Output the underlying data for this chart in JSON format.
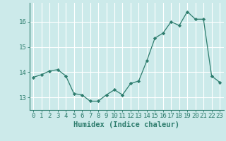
{
  "x": [
    0,
    1,
    2,
    3,
    4,
    5,
    6,
    7,
    8,
    9,
    10,
    11,
    12,
    13,
    14,
    15,
    16,
    17,
    18,
    19,
    20,
    21,
    22,
    23
  ],
  "y": [
    13.8,
    13.9,
    14.05,
    14.1,
    13.85,
    13.15,
    13.1,
    12.85,
    12.85,
    13.1,
    13.3,
    13.1,
    13.55,
    13.65,
    14.45,
    15.35,
    15.55,
    16.0,
    15.85,
    16.4,
    16.1,
    16.1,
    13.85,
    13.6
  ],
  "line_color": "#2e7d6e",
  "marker": "D",
  "marker_size": 2.2,
  "bg_color": "#cceaea",
  "grid_color": "#ffffff",
  "xlabel": "Humidex (Indice chaleur)",
  "xlabel_fontsize": 7.5,
  "tick_label_fontsize": 6.5,
  "yticks": [
    13,
    14,
    15,
    16
  ],
  "xticks": [
    0,
    1,
    2,
    3,
    4,
    5,
    6,
    7,
    8,
    9,
    10,
    11,
    12,
    13,
    14,
    15,
    16,
    17,
    18,
    19,
    20,
    21,
    22,
    23
  ],
  "ylim": [
    12.5,
    16.75
  ],
  "xlim": [
    -0.5,
    23.5
  ]
}
